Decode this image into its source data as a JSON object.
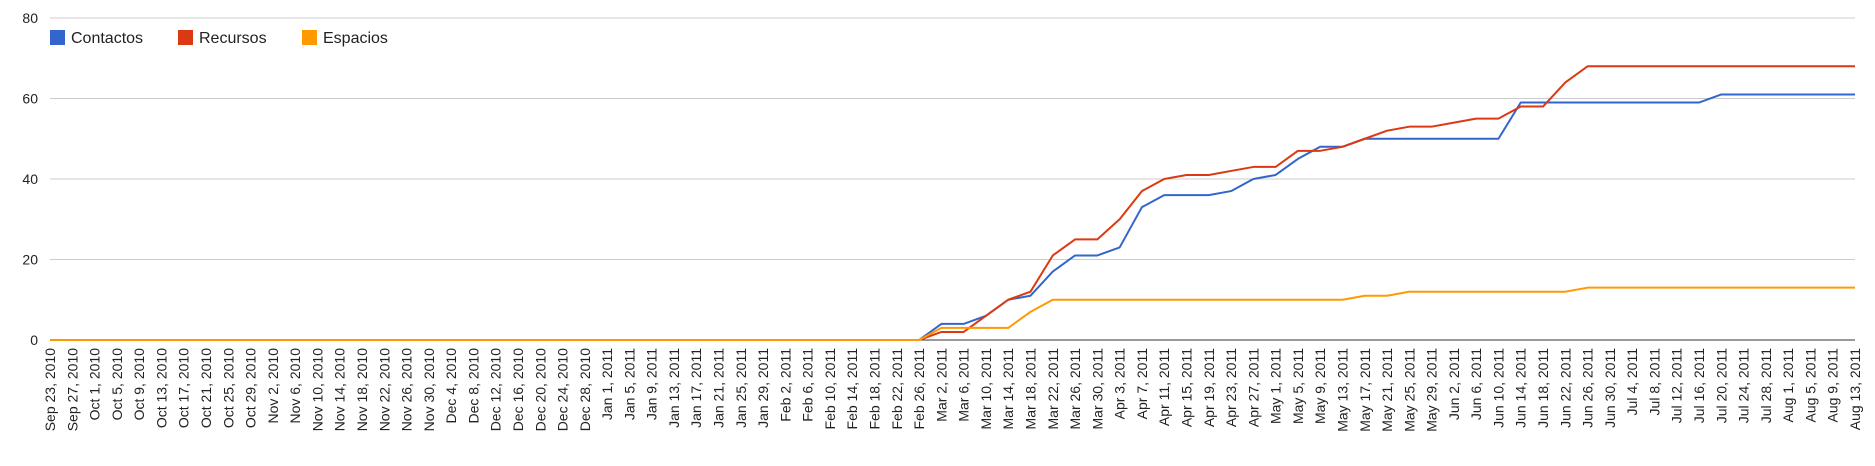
{
  "chart_data": {
    "type": "line",
    "title": "",
    "xlabel": "",
    "ylabel": "",
    "ylim": [
      0,
      80
    ],
    "yticks": [
      0,
      20,
      40,
      60,
      80
    ],
    "grid": true,
    "legend_position": "top-left",
    "categories": [
      "Sep 23, 2010",
      "Sep 27, 2010",
      "Oct 1, 2010",
      "Oct 5, 2010",
      "Oct 9, 2010",
      "Oct 13, 2010",
      "Oct 17, 2010",
      "Oct 21, 2010",
      "Oct 25, 2010",
      "Oct 29, 2010",
      "Nov 2, 2010",
      "Nov 6, 2010",
      "Nov 10, 2010",
      "Nov 14, 2010",
      "Nov 18, 2010",
      "Nov 22, 2010",
      "Nov 26, 2010",
      "Nov 30, 2010",
      "Dec 4, 2010",
      "Dec 8, 2010",
      "Dec 12, 2010",
      "Dec 16, 2010",
      "Dec 20, 2010",
      "Dec 24, 2010",
      "Dec 28, 2010",
      "Jan 1, 2011",
      "Jan 5, 2011",
      "Jan 9, 2011",
      "Jan 13, 2011",
      "Jan 17, 2011",
      "Jan 21, 2011",
      "Jan 25, 2011",
      "Jan 29, 2011",
      "Feb 2, 2011",
      "Feb 6, 2011",
      "Feb 10, 2011",
      "Feb 14, 2011",
      "Feb 18, 2011",
      "Feb 22, 2011",
      "Feb 26, 2011",
      "Mar 2, 2011",
      "Mar 6, 2011",
      "Mar 10, 2011",
      "Mar 14, 2011",
      "Mar 18, 2011",
      "Mar 22, 2011",
      "Mar 26, 2011",
      "Mar 30, 2011",
      "Apr 3, 2011",
      "Apr 7, 2011",
      "Apr 11, 2011",
      "Apr 15, 2011",
      "Apr 19, 2011",
      "Apr 23, 2011",
      "Apr 27, 2011",
      "May 1, 2011",
      "May 5, 2011",
      "May 9, 2011",
      "May 13, 2011",
      "May 17, 2011",
      "May 21, 2011",
      "May 25, 2011",
      "May 29, 2011",
      "Jun 2, 2011",
      "Jun 6, 2011",
      "Jun 10, 2011",
      "Jun 14, 2011",
      "Jun 18, 2011",
      "Jun 22, 2011",
      "Jun 26, 2011",
      "Jun 30, 2011",
      "Jul 4, 2011",
      "Jul 8, 2011",
      "Jul 12, 2011",
      "Jul 16, 2011",
      "Jul 20, 2011",
      "Jul 24, 2011",
      "Jul 28, 2011",
      "Aug 1, 2011",
      "Aug 5, 2011",
      "Aug 9, 2011",
      "Aug 13, 2011"
    ],
    "series": [
      {
        "name": "Contactos",
        "color": "#3366cc",
        "values": [
          0,
          0,
          0,
          0,
          0,
          0,
          0,
          0,
          0,
          0,
          0,
          0,
          0,
          0,
          0,
          0,
          0,
          0,
          0,
          0,
          0,
          0,
          0,
          0,
          0,
          0,
          0,
          0,
          0,
          0,
          0,
          0,
          0,
          0,
          0,
          0,
          0,
          0,
          0,
          0,
          4,
          4,
          6,
          10,
          11,
          17,
          21,
          21,
          23,
          33,
          36,
          36,
          36,
          37,
          40,
          41,
          45,
          48,
          48,
          50,
          50,
          50,
          50,
          50,
          50,
          50,
          59,
          59,
          59,
          59,
          59,
          59,
          59,
          59,
          59,
          61,
          61,
          61,
          61,
          61,
          61,
          61
        ]
      },
      {
        "name": "Recursos",
        "color": "#dc3912",
        "values": [
          0,
          0,
          0,
          0,
          0,
          0,
          0,
          0,
          0,
          0,
          0,
          0,
          0,
          0,
          0,
          0,
          0,
          0,
          0,
          0,
          0,
          0,
          0,
          0,
          0,
          0,
          0,
          0,
          0,
          0,
          0,
          0,
          0,
          0,
          0,
          0,
          0,
          0,
          0,
          0,
          2,
          2,
          6,
          10,
          12,
          21,
          25,
          25,
          30,
          37,
          40,
          41,
          41,
          42,
          43,
          43,
          47,
          47,
          48,
          50,
          52,
          53,
          53,
          54,
          55,
          55,
          58,
          58,
          64,
          68,
          68,
          68,
          68,
          68,
          68,
          68,
          68,
          68,
          68,
          68,
          68,
          68
        ]
      },
      {
        "name": "Espacios",
        "color": "#ff9900",
        "values": [
          0,
          0,
          0,
          0,
          0,
          0,
          0,
          0,
          0,
          0,
          0,
          0,
          0,
          0,
          0,
          0,
          0,
          0,
          0,
          0,
          0,
          0,
          0,
          0,
          0,
          0,
          0,
          0,
          0,
          0,
          0,
          0,
          0,
          0,
          0,
          0,
          0,
          0,
          0,
          0,
          3,
          3,
          3,
          3,
          7,
          10,
          10,
          10,
          10,
          10,
          10,
          10,
          10,
          10,
          10,
          10,
          10,
          10,
          10,
          11,
          11,
          12,
          12,
          12,
          12,
          12,
          12,
          12,
          12,
          13,
          13,
          13,
          13,
          13,
          13,
          13,
          13,
          13,
          13,
          13,
          13,
          13
        ]
      }
    ]
  }
}
